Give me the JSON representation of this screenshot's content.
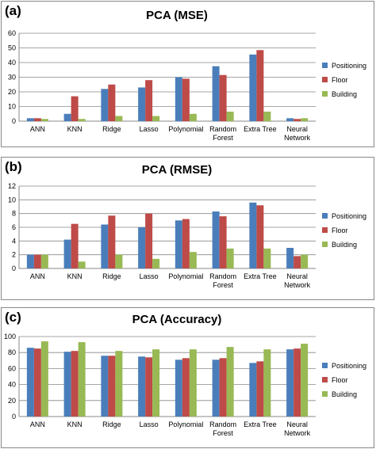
{
  "chart_data": [
    {
      "panel_label": "(a)",
      "type": "bar",
      "title": "PCA (MSE)",
      "categories": [
        [
          "ANN"
        ],
        [
          "KNN"
        ],
        [
          "Ridge"
        ],
        [
          "Lasso"
        ],
        [
          "Polynomial"
        ],
        [
          "Random",
          "Forest"
        ],
        [
          "Extra Tree"
        ],
        [
          "Neural",
          "Network"
        ]
      ],
      "yticks": [
        "0",
        "10",
        "20",
        "30",
        "40",
        "50",
        "60"
      ],
      "ylim": [
        0,
        60
      ],
      "grid": true,
      "legend_position": "right",
      "series": [
        {
          "name": "Positioning",
          "color": "#4a7ebb",
          "values": [
            2,
            5,
            22,
            23,
            30,
            37.5,
            45.5,
            2
          ]
        },
        {
          "name": "Floor",
          "color": "#be4b48",
          "values": [
            2,
            17,
            25,
            28,
            29,
            31.5,
            48.5,
            1.5
          ]
        },
        {
          "name": "Building",
          "color": "#98b954",
          "values": [
            1.5,
            1.5,
            3.5,
            3.5,
            5,
            6.5,
            6.5,
            2
          ]
        }
      ]
    },
    {
      "panel_label": "(b)",
      "type": "bar",
      "title": "PCA (RMSE)",
      "categories": [
        [
          "ANN"
        ],
        [
          "KNN"
        ],
        [
          "Ridge"
        ],
        [
          "Lasso"
        ],
        [
          "Polynomial"
        ],
        [
          "Random",
          "Forest"
        ],
        [
          "Extra Tree"
        ],
        [
          "Neural",
          "Network"
        ]
      ],
      "yticks": [
        "0",
        "2",
        "4",
        "6",
        "8",
        "10",
        "12"
      ],
      "ylim": [
        0,
        12
      ],
      "grid": true,
      "legend_position": "right",
      "series": [
        {
          "name": "Positioning",
          "color": "#4a7ebb",
          "values": [
            2,
            4.2,
            6.4,
            6,
            7,
            8.3,
            9.6,
            3
          ]
        },
        {
          "name": "Floor",
          "color": "#be4b48",
          "values": [
            2,
            6.5,
            7.7,
            8,
            7.2,
            7.6,
            9.2,
            1.8
          ]
        },
        {
          "name": "Building",
          "color": "#98b954",
          "values": [
            2,
            1,
            2,
            1.4,
            2.4,
            2.9,
            2.9,
            2
          ]
        }
      ]
    },
    {
      "panel_label": "(c)",
      "type": "bar",
      "title": "PCA (Accuracy)",
      "categories": [
        [
          "ANN"
        ],
        [
          "KNN"
        ],
        [
          "Ridge"
        ],
        [
          "Lasso"
        ],
        [
          "Polynomial"
        ],
        [
          "Random",
          "Forest"
        ],
        [
          "Extra Tree"
        ],
        [
          "Neural",
          "Network"
        ]
      ],
      "yticks": [
        "0",
        "20",
        "40",
        "60",
        "80",
        "100"
      ],
      "ylim": [
        0,
        100
      ],
      "grid": true,
      "legend_position": "right",
      "series": [
        {
          "name": "Positioning",
          "color": "#4a7ebb",
          "values": [
            86,
            81,
            76,
            75,
            71,
            71,
            67,
            84
          ]
        },
        {
          "name": "Floor",
          "color": "#be4b48",
          "values": [
            85,
            82,
            76,
            74,
            73,
            73,
            69,
            85
          ]
        },
        {
          "name": "Building",
          "color": "#98b954",
          "values": [
            94,
            93,
            82,
            84,
            84,
            87,
            84,
            91
          ]
        }
      ]
    }
  ]
}
